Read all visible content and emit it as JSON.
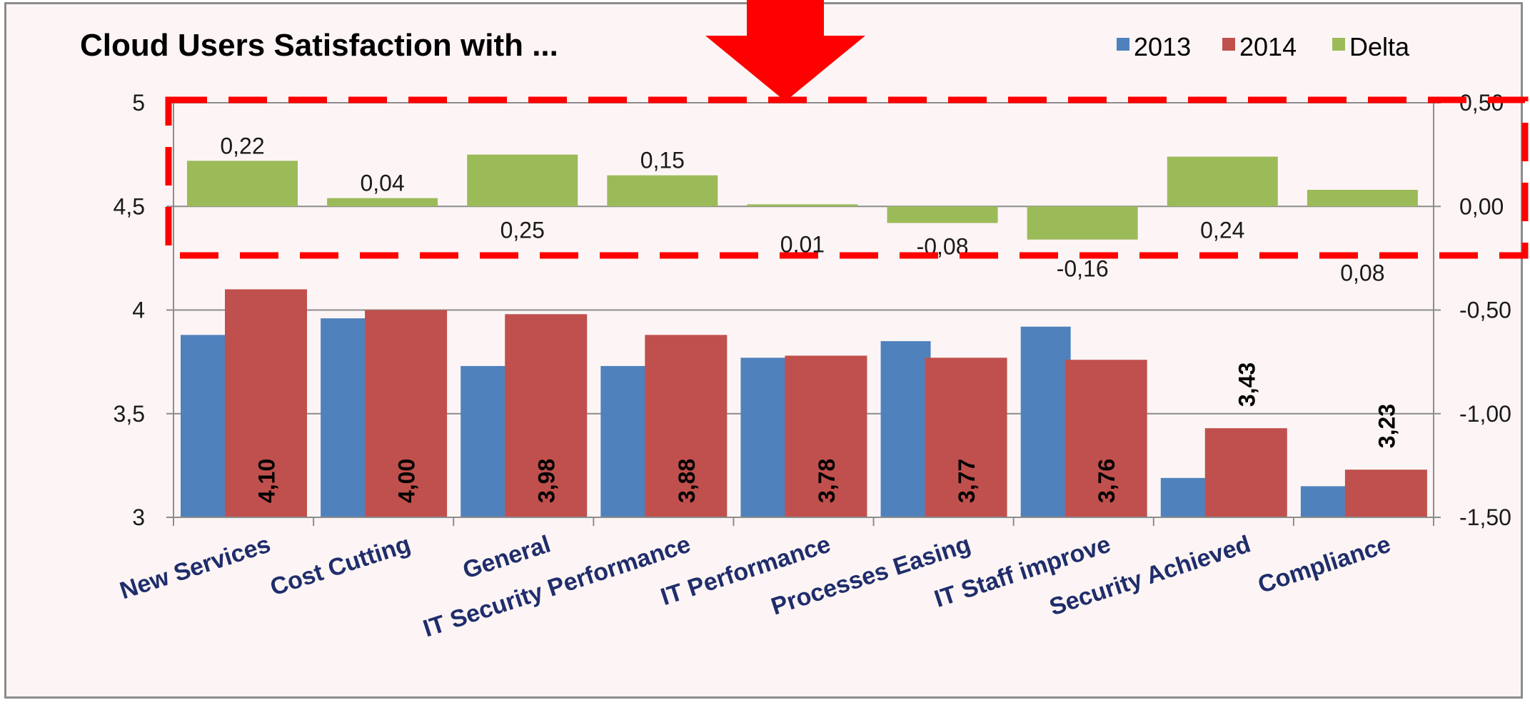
{
  "chart_data": {
    "type": "bar",
    "title": "Cloud Users Satisfaction with ...",
    "categories": [
      "New Services",
      "Cost Cutting",
      "General",
      "IT Security Performance",
      "IT Performance",
      "Processes Easing",
      "IT Staff improve",
      "Security Achieved",
      "Compliance"
    ],
    "series": [
      {
        "name": "2013",
        "axis": "left",
        "color": "#4f81bd",
        "values": [
          3.88,
          3.96,
          3.73,
          3.73,
          3.77,
          3.85,
          3.92,
          3.19,
          3.15
        ]
      },
      {
        "name": "2014",
        "axis": "left",
        "color": "#c0504d",
        "values": [
          4.1,
          4.0,
          3.98,
          3.88,
          3.78,
          3.77,
          3.76,
          3.43,
          3.23
        ],
        "labels": [
          "4,10",
          "4,00",
          "3,98",
          "3,88",
          "3,78",
          "3,77",
          "3,76",
          "3,43",
          "3,23"
        ]
      },
      {
        "name": "Delta",
        "axis": "right",
        "color": "#9bbb59",
        "values": [
          0.22,
          0.04,
          0.25,
          0.15,
          0.01,
          -0.08,
          -0.16,
          0.24,
          0.08
        ],
        "labels": [
          "0,22",
          "0,04",
          "0,25",
          "0,15",
          "0,01",
          "-0,08",
          "-0,16",
          "0,24",
          "0,08"
        ]
      }
    ],
    "left_axis": {
      "min": 3,
      "max": 5,
      "ticks": [
        3,
        3.5,
        4,
        4.5,
        5
      ],
      "tick_labels": [
        "3",
        "3,5",
        "4",
        "4,5",
        "5"
      ]
    },
    "right_axis": {
      "min": -1.5,
      "max": 0.5,
      "ticks": [
        -1.5,
        -1,
        -0.5,
        0,
        0.5
      ],
      "tick_labels": [
        "-1,50",
        "-1,00",
        "-0,50",
        "0,00",
        "0,50"
      ]
    },
    "grid": true,
    "legend_position": "top-right"
  },
  "annotations": {
    "arrow_color": "#ff0000",
    "highlight_box_color": "#ff0000"
  }
}
